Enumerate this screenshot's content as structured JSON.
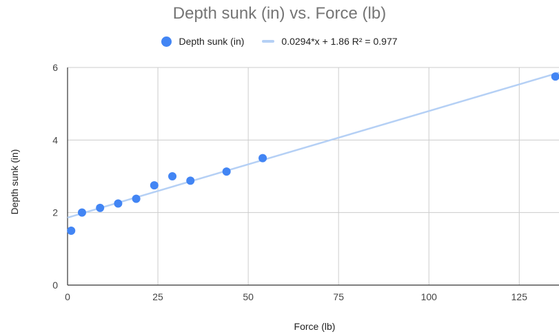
{
  "chart_data": {
    "type": "scatter",
    "title": "Depth sunk (in) vs. Force (lb)",
    "xlabel": "Force (lb)",
    "ylabel": "Depth sunk (in)",
    "xlim": [
      0,
      136
    ],
    "ylim": [
      0,
      6
    ],
    "x_ticks": [
      "0",
      "25",
      "50",
      "75",
      "100",
      "125"
    ],
    "y_ticks": [
      "0",
      "2",
      "4",
      "6"
    ],
    "grid": true,
    "legend_position": "top",
    "series": [
      {
        "name": "Depth sunk (in)",
        "color": "#4285f4",
        "points": [
          {
            "x": 1,
            "y": 1.5
          },
          {
            "x": 4,
            "y": 2.0
          },
          {
            "x": 9,
            "y": 2.13
          },
          {
            "x": 14,
            "y": 2.25
          },
          {
            "x": 19,
            "y": 2.38
          },
          {
            "x": 24,
            "y": 2.75
          },
          {
            "x": 29,
            "y": 3.0
          },
          {
            "x": 34,
            "y": 2.88
          },
          {
            "x": 44,
            "y": 3.13
          },
          {
            "x": 54,
            "y": 3.5
          },
          {
            "x": 135,
            "y": 5.75
          }
        ]
      }
    ],
    "trendline": {
      "label": "0.0294*x + 1.86 R² = 0.977",
      "slope": 0.0294,
      "intercept": 1.86,
      "color": "#b5d0f5"
    }
  }
}
